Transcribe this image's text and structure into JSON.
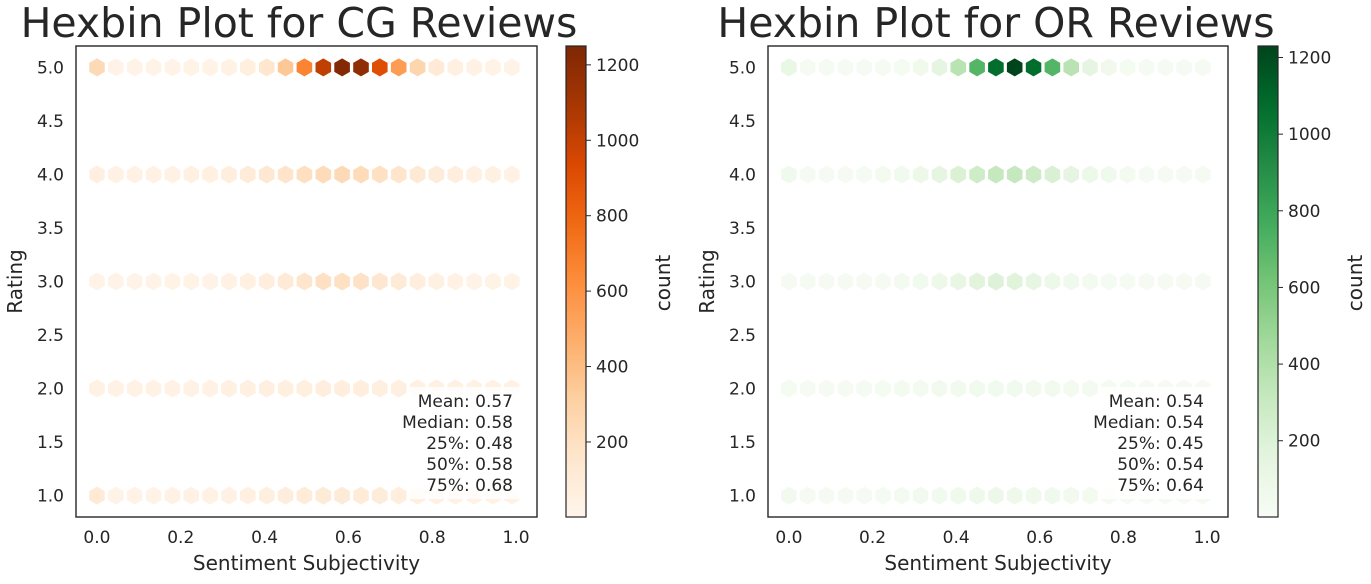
{
  "chart_data": [
    {
      "type": "hexbin",
      "title": "Hexbin Plot for CG Reviews",
      "xlabel": "Sentiment Subjectivity",
      "ylabel": "Rating",
      "xlim": [
        -0.05,
        1.05
      ],
      "ylim": [
        0.8,
        5.2
      ],
      "xticks": [
        "0.0",
        "0.2",
        "0.4",
        "0.6",
        "0.8",
        "1.0"
      ],
      "yticks": [
        "1.0",
        "1.5",
        "2.0",
        "2.5",
        "3.0",
        "3.5",
        "4.0",
        "4.5",
        "5.0"
      ],
      "colormap": "Oranges",
      "colorbar": {
        "label": "count",
        "range": [
          1,
          1250
        ],
        "ticks": [
          "200",
          "400",
          "600",
          "800",
          "1000",
          "1200"
        ]
      },
      "stats": [
        "Mean: 0.57",
        "Median: 0.58",
        "25%: 0.48",
        "50%: 0.58",
        "75%: 0.68"
      ],
      "rating_profiles": [
        {
          "rating": 5.0,
          "peak_x": 0.6,
          "peak_count": 1250,
          "spread": 0.13,
          "base_count": 25,
          "edge_count": 240
        },
        {
          "rating": 4.0,
          "peak_x": 0.58,
          "peak_count": 240,
          "spread": 0.2,
          "base_count": 40,
          "edge_count": 60
        },
        {
          "rating": 3.0,
          "peak_x": 0.58,
          "peak_count": 200,
          "spread": 0.16,
          "base_count": 25,
          "edge_count": 30
        },
        {
          "rating": 2.0,
          "peak_x": 0.58,
          "peak_count": 70,
          "spread": 0.3,
          "base_count": 30,
          "edge_count": 45
        },
        {
          "rating": 1.0,
          "peak_x": 0.58,
          "peak_count": 110,
          "spread": 0.2,
          "base_count": 30,
          "edge_count": 120
        }
      ]
    },
    {
      "type": "hexbin",
      "title": "Hexbin Plot for OR Reviews",
      "xlabel": "Sentiment Subjectivity",
      "ylabel": "Rating",
      "xlim": [
        -0.05,
        1.05
      ],
      "ylim": [
        0.8,
        5.2
      ],
      "xticks": [
        "0.0",
        "0.2",
        "0.4",
        "0.6",
        "0.8",
        "1.0"
      ],
      "yticks": [
        "1.0",
        "1.5",
        "2.0",
        "2.5",
        "3.0",
        "3.5",
        "4.0",
        "4.5",
        "5.0"
      ],
      "colormap": "Greens",
      "colorbar": {
        "label": "count",
        "range": [
          1,
          1230
        ],
        "ticks": [
          "200",
          "400",
          "600",
          "800",
          "1000",
          "1200"
        ]
      },
      "stats": [
        "Mean: 0.54",
        "Median: 0.54",
        "25%: 0.45",
        "50%: 0.54",
        "75%: 0.64"
      ],
      "rating_profiles": [
        {
          "rating": 5.0,
          "peak_x": 0.54,
          "peak_count": 1230,
          "spread": 0.12,
          "base_count": 20,
          "edge_count": 120
        },
        {
          "rating": 4.0,
          "peak_x": 0.52,
          "peak_count": 320,
          "spread": 0.17,
          "base_count": 20,
          "edge_count": 60
        },
        {
          "rating": 3.0,
          "peak_x": 0.5,
          "peak_count": 190,
          "spread": 0.15,
          "base_count": 15,
          "edge_count": 20
        },
        {
          "rating": 2.0,
          "peak_x": 0.5,
          "peak_count": 50,
          "spread": 0.28,
          "base_count": 15,
          "edge_count": 30
        },
        {
          "rating": 1.0,
          "peak_x": 0.5,
          "peak_count": 80,
          "spread": 0.2,
          "base_count": 15,
          "edge_count": 40
        }
      ]
    }
  ]
}
